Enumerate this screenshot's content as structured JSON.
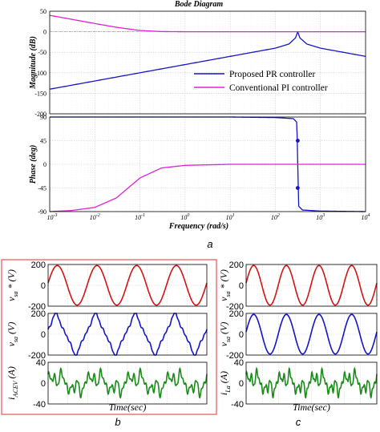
{
  "colors": {
    "pr": "#1515c8",
    "pi": "#e020d8",
    "red": "#d21414",
    "blue": "#1515c8",
    "green": "#1a8c1a",
    "frame_b": "#e86060",
    "grid": "#d4d4d4",
    "axis": "#000000"
  },
  "panel_labels": {
    "a": "a",
    "b": "b",
    "c": "c"
  },
  "chart_data": [
    {
      "id": "bode",
      "type": "line",
      "title": "Bode Diagram",
      "xlabel": "Frequency  (rad/s)",
      "xscale": "log",
      "xlim": [
        0.001,
        10000
      ],
      "xticks": [
        "10^-3",
        "10^-2",
        "10^-1",
        "10^0",
        "10^1",
        "10^2",
        "10^3",
        "10^4"
      ],
      "grid": true,
      "legend_position": "inside-right of magnitude plot",
      "legend": [
        "Proposed PR controller",
        "Conventional PI controller"
      ],
      "resonance_frequency": 314,
      "magnitude": {
        "ylabel": "Magnitude (dB)",
        "ylim": [
          -200,
          50
        ],
        "yticks": [
          50,
          0,
          -50,
          -100,
          -150,
          -200
        ],
        "series": [
          {
            "name": "Proposed PR controller",
            "x": [
              0.001,
              0.01,
              0.1,
              1,
              10,
              100,
              200,
              280,
              314,
              350,
              500,
              1000,
              10000
            ],
            "y": [
              -140,
              -120,
              -100,
              -80,
              -60,
              -40,
              -30,
              -15,
              0,
              -15,
              -30,
              -40,
              -60
            ]
          },
          {
            "name": "Conventional PI controller",
            "x": [
              0.001,
              0.003,
              0.01,
              0.03,
              0.1,
              0.3,
              1,
              10,
              100,
              1000,
              10000
            ],
            "y": [
              40,
              30.5,
              20.0,
              10.9,
              3.0,
              0.4,
              0.0,
              0.0,
              0.0,
              0.0,
              0.0
            ]
          }
        ]
      },
      "phase": {
        "ylabel": "Phase (deg)",
        "ylim": [
          -90,
          90
        ],
        "yticks": [
          90,
          45,
          0,
          -45,
          -90
        ],
        "series": [
          {
            "name": "Proposed PR controller",
            "x": [
              0.001,
              0.1,
              10,
              100,
              250,
              300,
              314,
              330,
              400,
              1000,
              10000
            ],
            "y": [
              90,
              90,
              90,
              89,
              87,
              80,
              0,
              -80,
              -87,
              -89,
              -90
            ]
          },
          {
            "name": "Conventional PI controller",
            "x": [
              0.001,
              0.003,
              0.01,
              0.03,
              0.1,
              0.3,
              1,
              10,
              100,
              10000
            ],
            "y": [
              -90,
              -88,
              -82,
              -64,
              -26,
              -7,
              -2,
              0,
              0,
              0
            ]
          }
        ],
        "markers": [
          {
            "x": 314,
            "y": 45
          },
          {
            "x": 314,
            "y": -45
          }
        ]
      }
    },
    {
      "id": "b",
      "type": "line",
      "xlabel": "Time(sec)",
      "cycles": 4,
      "plots": [
        {
          "ylabel_main": "v",
          "ylabel_sub": "sa",
          "ylabel_tail": "* (V)",
          "ylim": [
            -200,
            200
          ],
          "yticks": [
            200,
            0,
            -200
          ],
          "color": "red",
          "shape": "sine"
        },
        {
          "ylabel_main": "v",
          "ylabel_sub": "sa",
          "ylabel_tail": " (V)",
          "ylim": [
            -200,
            200
          ],
          "yticks": [
            200,
            0,
            -200
          ],
          "color": "blue",
          "shape": "distorted"
        },
        {
          "ylabel_main": "i",
          "ylabel_sub": "ACEV",
          "ylabel_tail": " (A)",
          "ylim": [
            -40,
            40
          ],
          "yticks": [
            40,
            0,
            -40
          ],
          "color": "green",
          "shape": "current"
        }
      ]
    },
    {
      "id": "c",
      "type": "line",
      "xlabel": "Time(sec)",
      "cycles": 4,
      "plots": [
        {
          "ylabel_main": "v",
          "ylabel_sub": "sa",
          "ylabel_tail": "* (V)",
          "ylim": [
            -200,
            200
          ],
          "yticks": [
            200,
            0,
            -200
          ],
          "color": "red",
          "shape": "sine"
        },
        {
          "ylabel_main": "v",
          "ylabel_sub": "sa",
          "ylabel_tail": " (V)",
          "ylim": [
            -200,
            200
          ],
          "yticks": [
            200,
            0,
            -200
          ],
          "color": "blue",
          "shape": "sine"
        },
        {
          "ylabel_main": "i",
          "ylabel_sub": "La",
          "ylabel_tail": " (A)",
          "ylim": [
            -40,
            40
          ],
          "yticks": [
            40,
            0,
            -40
          ],
          "color": "green",
          "shape": "current"
        }
      ]
    }
  ]
}
